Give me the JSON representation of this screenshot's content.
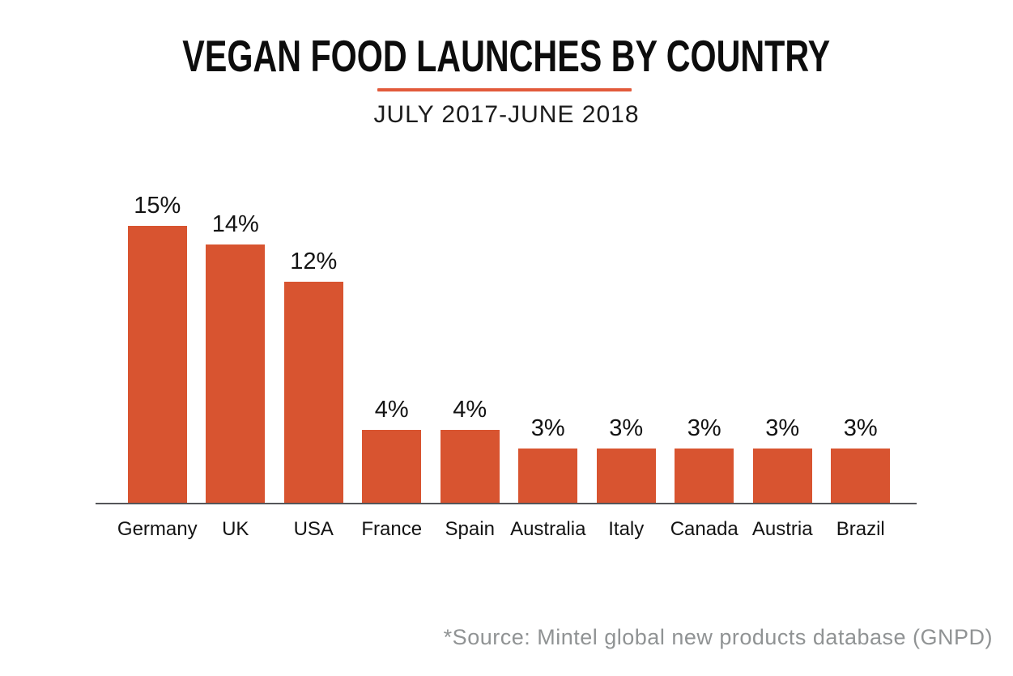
{
  "header": {
    "title": "VEGAN FOOD LAUNCHES BY COUNTRY",
    "subtitle": "JULY 2017-JUNE 2018"
  },
  "footer": {
    "source": "*Source: Mintel global new products database (GNPD)"
  },
  "colors": {
    "bar": "#d85430",
    "underline": "#e25a3b",
    "axis": "#555659",
    "title_text": "#0d0d0d",
    "label_text": "#131313",
    "source_text": "#909394",
    "background": "#ffffff"
  },
  "chart_data": {
    "type": "bar",
    "title": "VEGAN FOOD LAUNCHES BY COUNTRY",
    "subtitle": "JULY 2017-JUNE 2018",
    "categories": [
      "Germany",
      "UK",
      "USA",
      "France",
      "Spain",
      "Australia",
      "Italy",
      "Canada",
      "Austria",
      "Brazil"
    ],
    "values": [
      15,
      14,
      12,
      4,
      4,
      3,
      3,
      3,
      3,
      3
    ],
    "value_labels": [
      "15%",
      "14%",
      "12%",
      "4%",
      "4%",
      "3%",
      "3%",
      "3%",
      "3%",
      "3%"
    ],
    "unit": "%",
    "xlabel": "",
    "ylabel": "",
    "ylim": [
      0,
      15
    ],
    "grid": false,
    "legend": "none",
    "bar_color": "#d85430",
    "annotations": [
      "*Source: Mintel global new products database (GNPD)"
    ]
  }
}
